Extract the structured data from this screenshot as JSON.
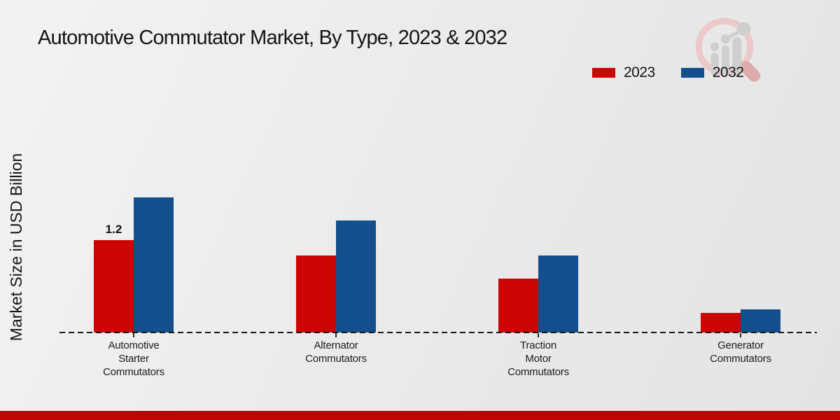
{
  "ui": {
    "logo_icon": "magnifier-bar-chart-watermark",
    "footer_bar_color": "#c00303",
    "background_color": "#ebebeb"
  },
  "chart_data": {
    "type": "bar",
    "title": "Automotive Commutator Market, By Type, 2023 & 2032",
    "xlabel": "",
    "ylabel": "Market Size in USD Billion",
    "categories": [
      "Automotive Starter Commutators",
      "Alternator Commutators",
      "Traction Motor Commutators",
      "Generator Commutators"
    ],
    "series": [
      {
        "name": "2023",
        "color": "#cb0404",
        "values": [
          1.2,
          1.0,
          0.7,
          0.25
        ]
      },
      {
        "name": "2032",
        "color": "#134f8c",
        "values": [
          1.75,
          1.45,
          1.0,
          0.3
        ]
      }
    ],
    "annotations": [
      {
        "series_index": 0,
        "category_index": 0,
        "text": "1.2"
      }
    ],
    "ylim": [
      0,
      2
    ],
    "grid": false,
    "legend_position": "top-right",
    "baseline_style": "dashed"
  }
}
